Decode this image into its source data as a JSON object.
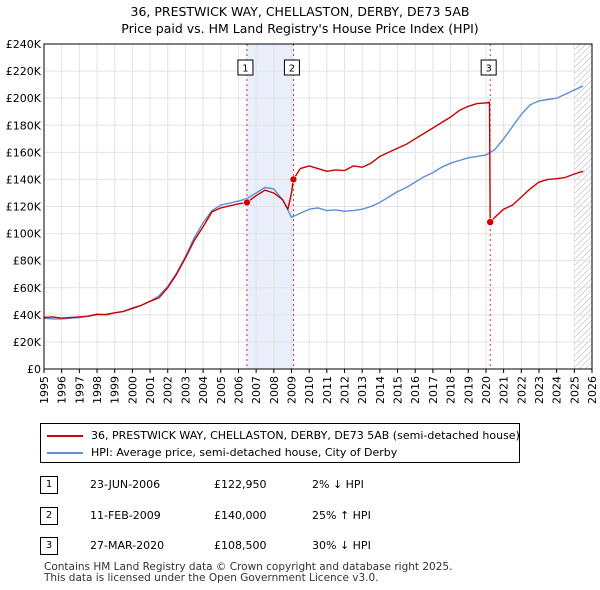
{
  "chart_data": {
    "type": "line",
    "title": "36, PRESTWICK WAY, CHELLASTON, DERBY, DE73 5AB",
    "subtitle": "Price paid vs. HM Land Registry's House Price Index (HPI)",
    "xlabel": "",
    "ylabel": "",
    "xlim": [
      1995,
      2026
    ],
    "ylim": [
      0,
      240000
    ],
    "x_ticks": [
      "1995",
      "1996",
      "1997",
      "1998",
      "1999",
      "2000",
      "2001",
      "2002",
      "2003",
      "2004",
      "2005",
      "2006",
      "2007",
      "2008",
      "2009",
      "2010",
      "2011",
      "2012",
      "2013",
      "2014",
      "2015",
      "2016",
      "2017",
      "2018",
      "2019",
      "2020",
      "2021",
      "2022",
      "2023",
      "2024",
      "2025",
      "2026"
    ],
    "y_ticks": [
      {
        "value": 0,
        "label": "£0"
      },
      {
        "value": 20000,
        "label": "£20K"
      },
      {
        "value": 40000,
        "label": "£40K"
      },
      {
        "value": 60000,
        "label": "£60K"
      },
      {
        "value": 80000,
        "label": "£80K"
      },
      {
        "value": 100000,
        "label": "£100K"
      },
      {
        "value": 120000,
        "label": "£120K"
      },
      {
        "value": 140000,
        "label": "£140K"
      },
      {
        "value": 160000,
        "label": "£160K"
      },
      {
        "value": 180000,
        "label": "£180K"
      },
      {
        "value": 200000,
        "label": "£200K"
      },
      {
        "value": 220000,
        "label": "£220K"
      },
      {
        "value": 240000,
        "label": "£240K"
      }
    ],
    "grid": true,
    "legend_position": "bottom",
    "series": [
      {
        "name": "36, PRESTWICK WAY, CHELLASTON, DERBY, DE73 5AB (semi-detached house)",
        "color": "#cc0000",
        "points": [
          [
            1995.0,
            38000
          ],
          [
            1995.5,
            38500
          ],
          [
            1996.0,
            37500
          ],
          [
            1996.5,
            38000
          ],
          [
            1997.0,
            38500
          ],
          [
            1997.5,
            39000
          ],
          [
            1998.0,
            40500
          ],
          [
            1998.5,
            40000
          ],
          [
            1999.0,
            41500
          ],
          [
            1999.5,
            42500
          ],
          [
            2000.0,
            45000
          ],
          [
            2000.5,
            47000
          ],
          [
            2001.0,
            50000
          ],
          [
            2001.5,
            52500
          ],
          [
            2002.0,
            60000
          ],
          [
            2002.5,
            70000
          ],
          [
            2003.0,
            82000
          ],
          [
            2003.5,
            95000
          ],
          [
            2004.0,
            105000
          ],
          [
            2004.5,
            116000
          ],
          [
            2005.0,
            119000
          ],
          [
            2005.5,
            120500
          ],
          [
            2006.0,
            122000
          ],
          [
            2006.48,
            122950
          ],
          [
            2007.0,
            128000
          ],
          [
            2007.5,
            132000
          ],
          [
            2008.0,
            130000
          ],
          [
            2008.5,
            125000
          ],
          [
            2008.8,
            118000
          ],
          [
            2009.0,
            130000
          ],
          [
            2009.11,
            140000
          ],
          [
            2009.5,
            148000
          ],
          [
            2010.0,
            150000
          ],
          [
            2010.5,
            148000
          ],
          [
            2011.0,
            146000
          ],
          [
            2011.5,
            147000
          ],
          [
            2012.0,
            146500
          ],
          [
            2012.5,
            150000
          ],
          [
            2013.0,
            149000
          ],
          [
            2013.5,
            152000
          ],
          [
            2014.0,
            157000
          ],
          [
            2014.5,
            160000
          ],
          [
            2015.0,
            163000
          ],
          [
            2015.5,
            166000
          ],
          [
            2016.0,
            170000
          ],
          [
            2016.5,
            174000
          ],
          [
            2017.0,
            178000
          ],
          [
            2017.5,
            182000
          ],
          [
            2018.0,
            186000
          ],
          [
            2018.5,
            191000
          ],
          [
            2019.0,
            194000
          ],
          [
            2019.5,
            196000
          ],
          [
            2020.0,
            196500
          ],
          [
            2020.2,
            197000
          ],
          [
            2020.24,
            108500
          ],
          [
            2020.5,
            112000
          ],
          [
            2021.0,
            118000
          ],
          [
            2021.5,
            121000
          ],
          [
            2022.0,
            127000
          ],
          [
            2022.5,
            133000
          ],
          [
            2023.0,
            138000
          ],
          [
            2023.5,
            140000
          ],
          [
            2024.0,
            140500
          ],
          [
            2024.5,
            141500
          ],
          [
            2025.0,
            144000
          ],
          [
            2025.5,
            146000
          ]
        ]
      },
      {
        "name": "HPI: Average price, semi-detached house, City of Derby",
        "color": "#5b8fd6",
        "points": [
          [
            1995.0,
            37500
          ],
          [
            1995.5,
            37000
          ],
          [
            1996.0,
            37000
          ],
          [
            1996.5,
            37500
          ],
          [
            1997.0,
            38000
          ],
          [
            1997.5,
            39000
          ],
          [
            1998.0,
            40000
          ],
          [
            1998.5,
            40500
          ],
          [
            1999.0,
            41500
          ],
          [
            1999.5,
            42500
          ],
          [
            2000.0,
            44500
          ],
          [
            2000.5,
            47000
          ],
          [
            2001.0,
            50000
          ],
          [
            2001.5,
            54000
          ],
          [
            2002.0,
            61000
          ],
          [
            2002.5,
            71000
          ],
          [
            2003.0,
            83000
          ],
          [
            2003.5,
            97000
          ],
          [
            2004.0,
            108000
          ],
          [
            2004.5,
            117000
          ],
          [
            2005.0,
            121000
          ],
          [
            2005.5,
            122500
          ],
          [
            2006.0,
            124000
          ],
          [
            2006.5,
            126000
          ],
          [
            2007.0,
            130000
          ],
          [
            2007.5,
            134000
          ],
          [
            2008.0,
            133000
          ],
          [
            2008.5,
            125000
          ],
          [
            2009.0,
            112000
          ],
          [
            2009.5,
            115000
          ],
          [
            2010.0,
            118000
          ],
          [
            2010.5,
            119000
          ],
          [
            2011.0,
            117000
          ],
          [
            2011.5,
            117500
          ],
          [
            2012.0,
            116500
          ],
          [
            2012.5,
            117000
          ],
          [
            2013.0,
            118000
          ],
          [
            2013.5,
            120000
          ],
          [
            2014.0,
            123000
          ],
          [
            2014.5,
            127000
          ],
          [
            2015.0,
            131000
          ],
          [
            2015.5,
            134000
          ],
          [
            2016.0,
            138000
          ],
          [
            2016.5,
            142000
          ],
          [
            2017.0,
            145000
          ],
          [
            2017.5,
            149000
          ],
          [
            2018.0,
            152000
          ],
          [
            2018.5,
            154000
          ],
          [
            2019.0,
            156000
          ],
          [
            2019.5,
            157000
          ],
          [
            2020.0,
            158000
          ],
          [
            2020.5,
            162000
          ],
          [
            2021.0,
            170000
          ],
          [
            2021.5,
            179000
          ],
          [
            2022.0,
            188000
          ],
          [
            2022.5,
            195000
          ],
          [
            2023.0,
            198000
          ],
          [
            2023.5,
            199000
          ],
          [
            2024.0,
            200000
          ],
          [
            2024.5,
            203000
          ],
          [
            2025.0,
            206000
          ],
          [
            2025.5,
            209000
          ]
        ]
      }
    ],
    "shaded_regions": [
      [
        2006.48,
        2009.11
      ]
    ],
    "future_region_start": 2025.0,
    "annotations": [
      {
        "label": "1",
        "x": 2006.48,
        "value": 122950
      },
      {
        "label": "2",
        "x": 2009.11,
        "value": 140000
      },
      {
        "label": "3",
        "x": 2020.24,
        "value": 108500
      }
    ]
  },
  "legend": {
    "property_label": "36, PRESTWICK WAY, CHELLASTON, DERBY, DE73 5AB (semi-detached house)",
    "hpi_label": "HPI: Average price, semi-detached house, City of Derby",
    "property_color": "#cc0000",
    "hpi_color": "#5b8fd6"
  },
  "sales": [
    {
      "num": "1",
      "date": "23-JUN-2006",
      "price": "£122,950",
      "hpi": "2% ↓ HPI"
    },
    {
      "num": "2",
      "date": "11-FEB-2009",
      "price": "£140,000",
      "hpi": "25% ↑ HPI"
    },
    {
      "num": "3",
      "date": "27-MAR-2020",
      "price": "£108,500",
      "hpi": "30% ↓ HPI"
    }
  ],
  "footer": {
    "line1": "Contains HM Land Registry data © Crown copyright and database right 2025.",
    "line2": "This data is licensed under the Open Government Licence v3.0."
  }
}
